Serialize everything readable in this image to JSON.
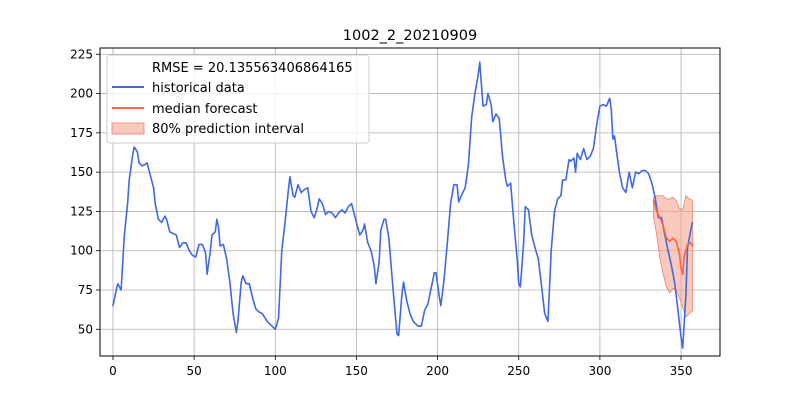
{
  "chart_data": {
    "type": "line",
    "title": "1002_2_20210909",
    "xlabel": "",
    "ylabel": "",
    "xlim": [
      -8,
      374
    ],
    "ylim": [
      33,
      229
    ],
    "x_ticks": [
      0,
      50,
      100,
      150,
      200,
      250,
      300,
      350
    ],
    "y_ticks": [
      50,
      75,
      100,
      125,
      150,
      175,
      200,
      225
    ],
    "grid": true,
    "legend": {
      "placement": "top-left",
      "header": "RMSE = 20.135563406864165",
      "entries": [
        "historical data",
        "median forecast",
        "80% prediction interval"
      ]
    },
    "colors": {
      "historical": "#4169e1",
      "median": "#ff6347",
      "interval_fill": "#f4a58f",
      "grid": "#b0b0b0"
    },
    "series": [
      {
        "name": "historical data",
        "points": [
          [
            0,
            65
          ],
          [
            2,
            75
          ],
          [
            3,
            79
          ],
          [
            5,
            75
          ],
          [
            7,
            110
          ],
          [
            9,
            130
          ],
          [
            10,
            145
          ],
          [
            12,
            160
          ],
          [
            13,
            166
          ],
          [
            15,
            163
          ],
          [
            16,
            156
          ],
          [
            18,
            154
          ],
          [
            20,
            155
          ],
          [
            21,
            156
          ],
          [
            23,
            148
          ],
          [
            25,
            140
          ],
          [
            26,
            130
          ],
          [
            28,
            120
          ],
          [
            30,
            118
          ],
          [
            32,
            122
          ],
          [
            33,
            120
          ],
          [
            35,
            112
          ],
          [
            37,
            111
          ],
          [
            39,
            110
          ],
          [
            41,
            102
          ],
          [
            43,
            105
          ],
          [
            45,
            105
          ],
          [
            47,
            100
          ],
          [
            49,
            97
          ],
          [
            51,
            96
          ],
          [
            53,
            104
          ],
          [
            55,
            104
          ],
          [
            57,
            99
          ],
          [
            58,
            85
          ],
          [
            60,
            100
          ],
          [
            61,
            110
          ],
          [
            63,
            112
          ],
          [
            64,
            120
          ],
          [
            65,
            115
          ],
          [
            66,
            103
          ],
          [
            68,
            104
          ],
          [
            70,
            95
          ],
          [
            72,
            80
          ],
          [
            74,
            60
          ],
          [
            76,
            48
          ],
          [
            77,
            55
          ],
          [
            79,
            80
          ],
          [
            80,
            84
          ],
          [
            82,
            79
          ],
          [
            84,
            79
          ],
          [
            86,
            70
          ],
          [
            88,
            63
          ],
          [
            90,
            61
          ],
          [
            92,
            60
          ],
          [
            95,
            55
          ],
          [
            97,
            53
          ],
          [
            100,
            50
          ],
          [
            102,
            57
          ],
          [
            104,
            100
          ],
          [
            106,
            118
          ],
          [
            108,
            138
          ],
          [
            109,
            147
          ],
          [
            111,
            135
          ],
          [
            112,
            134
          ],
          [
            114,
            142
          ],
          [
            116,
            137
          ],
          [
            118,
            139
          ],
          [
            120,
            140
          ],
          [
            122,
            125
          ],
          [
            124,
            121
          ],
          [
            126,
            128
          ],
          [
            127,
            133
          ],
          [
            129,
            130
          ],
          [
            131,
            123
          ],
          [
            133,
            125
          ],
          [
            135,
            124
          ],
          [
            137,
            121
          ],
          [
            139,
            124
          ],
          [
            141,
            126
          ],
          [
            143,
            124
          ],
          [
            145,
            128
          ],
          [
            147,
            130
          ],
          [
            149,
            122
          ],
          [
            150,
            118
          ],
          [
            152,
            110
          ],
          [
            154,
            113
          ],
          [
            155,
            117
          ],
          [
            157,
            105
          ],
          [
            159,
            100
          ],
          [
            161,
            90
          ],
          [
            162,
            79
          ],
          [
            164,
            93
          ],
          [
            165,
            113
          ],
          [
            167,
            120
          ],
          [
            168,
            120
          ],
          [
            170,
            108
          ],
          [
            171,
            95
          ],
          [
            173,
            70
          ],
          [
            175,
            47
          ],
          [
            176,
            46
          ],
          [
            178,
            72
          ],
          [
            179,
            80
          ],
          [
            181,
            68
          ],
          [
            183,
            60
          ],
          [
            185,
            55
          ],
          [
            187,
            53
          ],
          [
            188,
            52
          ],
          [
            190,
            52
          ],
          [
            192,
            62
          ],
          [
            194,
            66
          ],
          [
            196,
            76
          ],
          [
            198,
            86
          ],
          [
            199,
            86
          ],
          [
            201,
            71
          ],
          [
            202,
            65
          ],
          [
            204,
            82
          ],
          [
            206,
            105
          ],
          [
            208,
            130
          ],
          [
            210,
            142
          ],
          [
            212,
            142
          ],
          [
            213,
            131
          ],
          [
            215,
            136
          ],
          [
            217,
            140
          ],
          [
            219,
            155
          ],
          [
            221,
            185
          ],
          [
            223,
            200
          ],
          [
            225,
            212
          ],
          [
            226,
            220
          ],
          [
            228,
            192
          ],
          [
            230,
            193
          ],
          [
            231,
            200
          ],
          [
            233,
            193
          ],
          [
            234,
            182
          ],
          [
            236,
            187
          ],
          [
            238,
            184
          ],
          [
            240,
            160
          ],
          [
            242,
            145
          ],
          [
            243,
            141
          ],
          [
            245,
            143
          ],
          [
            247,
            118
          ],
          [
            249,
            95
          ],
          [
            250,
            79
          ],
          [
            251,
            77
          ],
          [
            253,
            105
          ],
          [
            254,
            128
          ],
          [
            256,
            126
          ],
          [
            258,
            110
          ],
          [
            260,
            102
          ],
          [
            262,
            95
          ],
          [
            264,
            78
          ],
          [
            266,
            60
          ],
          [
            268,
            55
          ],
          [
            270,
            100
          ],
          [
            272,
            125
          ],
          [
            274,
            133
          ],
          [
            276,
            135
          ],
          [
            277,
            145
          ],
          [
            279,
            145
          ],
          [
            281,
            158
          ],
          [
            282,
            157
          ],
          [
            284,
            159
          ],
          [
            285,
            150
          ],
          [
            286,
            162
          ],
          [
            288,
            158
          ],
          [
            290,
            165
          ],
          [
            292,
            158
          ],
          [
            294,
            160
          ],
          [
            296,
            165
          ],
          [
            298,
            180
          ],
          [
            300,
            192
          ],
          [
            302,
            193
          ],
          [
            304,
            192
          ],
          [
            306,
            197
          ],
          [
            307,
            190
          ],
          [
            308,
            171
          ],
          [
            309,
            173
          ],
          [
            310,
            165
          ],
          [
            312,
            150
          ],
          [
            314,
            140
          ],
          [
            316,
            137
          ],
          [
            318,
            150
          ],
          [
            320,
            140
          ],
          [
            322,
            150
          ],
          [
            324,
            149
          ],
          [
            326,
            151
          ],
          [
            328,
            151
          ],
          [
            330,
            149
          ],
          [
            332,
            143
          ],
          [
            334,
            134
          ],
          [
            336,
            121
          ],
          [
            338,
            121
          ],
          [
            340,
            110
          ],
          [
            342,
            100
          ],
          [
            344,
            91
          ],
          [
            346,
            80
          ],
          [
            348,
            63
          ],
          [
            350,
            45
          ],
          [
            351,
            38
          ],
          [
            353,
            72
          ],
          [
            354,
            102
          ],
          [
            356,
            113
          ],
          [
            357,
            118
          ]
        ]
      },
      {
        "name": "median forecast",
        "points": [
          [
            333,
            132
          ],
          [
            335,
            125
          ],
          [
            337,
            121
          ],
          [
            339,
            116
          ],
          [
            341,
            108
          ],
          [
            343,
            106
          ],
          [
            345,
            108
          ],
          [
            347,
            106
          ],
          [
            349,
            98
          ],
          [
            350,
            89
          ],
          [
            351,
            85
          ],
          [
            352,
            97
          ],
          [
            354,
            104
          ],
          [
            356,
            105
          ],
          [
            357,
            103
          ]
        ]
      },
      {
        "name": "80% prediction interval",
        "upper": [
          [
            333,
            134
          ],
          [
            335,
            135
          ],
          [
            337,
            135
          ],
          [
            339,
            135
          ],
          [
            341,
            133
          ],
          [
            343,
            133
          ],
          [
            345,
            134
          ],
          [
            347,
            132
          ],
          [
            349,
            127
          ],
          [
            351,
            126
          ],
          [
            353,
            135
          ],
          [
            355,
            133
          ],
          [
            357,
            132
          ]
        ],
        "lower": [
          [
            333,
            122
          ],
          [
            335,
            110
          ],
          [
            337,
            95
          ],
          [
            339,
            85
          ],
          [
            341,
            77
          ],
          [
            343,
            73
          ],
          [
            345,
            76
          ],
          [
            347,
            75
          ],
          [
            349,
            70
          ],
          [
            351,
            64
          ],
          [
            353,
            58
          ],
          [
            355,
            60
          ],
          [
            357,
            62
          ]
        ]
      }
    ]
  }
}
